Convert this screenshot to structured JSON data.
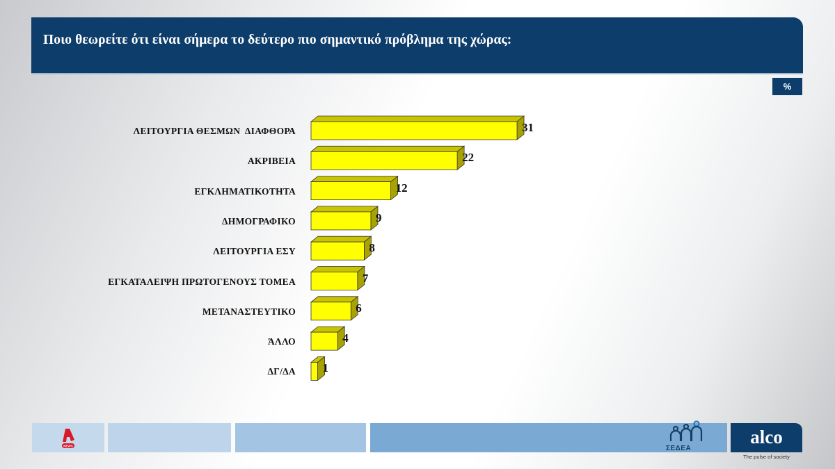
{
  "header": {
    "title": "Ποιο θεωρείτε ότι είναι σήμερα το δεύτερο πιο σημαντικό πρόβλημα της χώρας:"
  },
  "unit_badge": "%",
  "chart_data": {
    "type": "bar",
    "orientation": "horizontal",
    "style": "3d",
    "title": "Ποιο θεωρείτε ότι είναι σήμερα το δεύτερο πιο σημαντικό πρόβλημα της χώρας:",
    "unit": "%",
    "categories": [
      "ΛΕΙΤΟΥΡΓΙΑ ΘΕΣΜΩΝ  ΔΙΑΦΘΟΡΑ",
      "ΑΚΡΙΒΕΙΑ",
      "ΕΓΚΛΗΜΑΤΙΚΟΤΗΤΑ",
      "ΔΗΜΟΓΡΑΦΙΚΟ",
      "ΛΕΙΤΟΥΡΓΙΑ ΕΣΥ",
      "ΕΓΚΑΤΑΛΕΙΨΗ ΠΡΩΤΟΓΕΝΟΥΣ ΤΟΜΕΑ",
      "ΜΕΤΑΝΑΣΤΕΥΤΙΚΟ",
      "ΆΛΛΟ",
      "ΔΓ/ΔΑ"
    ],
    "values": [
      31,
      22,
      12,
      9,
      8,
      7,
      6,
      4,
      1
    ],
    "bar_color": "#ffff00",
    "xlabel": "",
    "ylabel": "",
    "grid": false,
    "legend": false
  },
  "footer": {
    "left_logo": "ALPHA NEWS",
    "sedea_label": "ΣΕΔΕΑ",
    "alco_label": "alco",
    "alco_tagline": "The pulse of society"
  }
}
